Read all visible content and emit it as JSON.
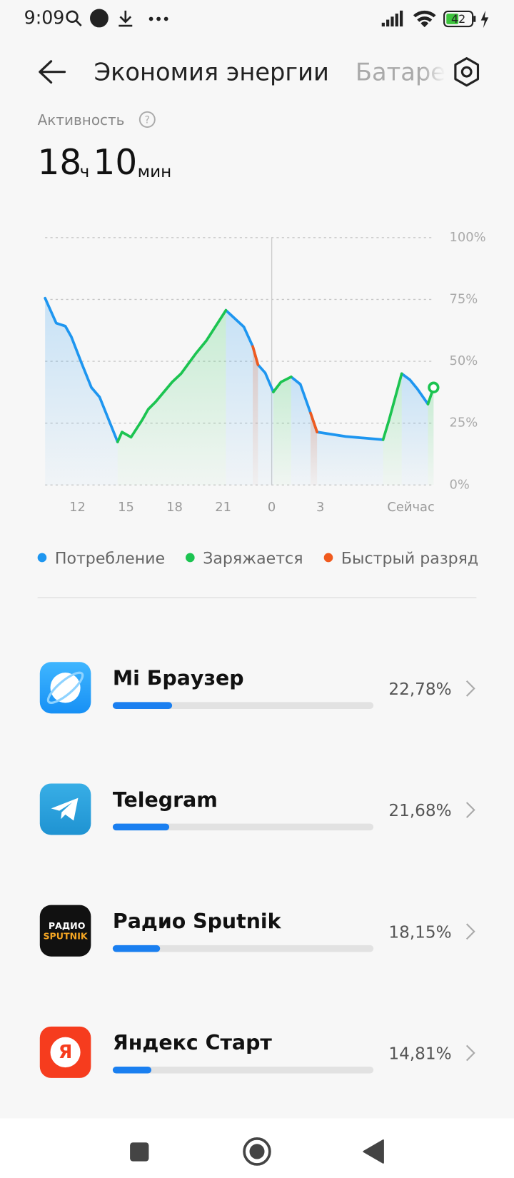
{
  "status_bar": {
    "time": "9:09",
    "battery": "42"
  },
  "header": {
    "title": "Экономия энергии",
    "tab": "Батаре"
  },
  "activity": {
    "label": "Активность",
    "hours": "18",
    "hours_unit": "ч",
    "minutes": "10",
    "minutes_unit": "мин"
  },
  "chart_data": {
    "type": "line",
    "x": [
      10,
      10.69,
      11.25,
      11.62,
      12.22,
      12.86,
      13.37,
      14.48,
      14.75,
      15.31,
      16.0,
      16.37,
      16.83,
      17.85,
      18.4,
      19.32,
      19.97,
      21.17,
      22.28,
      22.83,
      23.15,
      23.6,
      24.1,
      24.57,
      25.2,
      25.77,
      26.4,
      26.8,
      28.57,
      30.88,
      31.25,
      32.03,
      32.54,
      33.0,
      33.65,
      34.0
    ],
    "series": [
      {
        "name": "Потребление",
        "color": "#1e96f0",
        "values": [
          75.5,
          65.4,
          64.2,
          59.9,
          49.8,
          39.4,
          35.5,
          17.4,
          null,
          null,
          null,
          null,
          null,
          null,
          null,
          null,
          null,
          70.6,
          63.9,
          56.0,
          48.6,
          45.3,
          37.6,
          null,
          43.7,
          40.7,
          29.1,
          21.4,
          19.6,
          18.3,
          null,
          45.0,
          42.5,
          38.8,
          32.7,
          null
        ]
      },
      {
        "name": "Заряжается",
        "color": "#1cc451",
        "values": [
          null,
          null,
          null,
          null,
          null,
          null,
          null,
          17.4,
          21.4,
          19.3,
          26.3,
          30.6,
          33.6,
          41.6,
          45.0,
          53.2,
          58.4,
          70.6,
          null,
          null,
          null,
          null,
          37.6,
          41.6,
          43.7,
          null,
          null,
          null,
          null,
          18.3,
          26.3,
          45.0,
          null,
          null,
          32.7,
          39.4
        ]
      },
      {
        "name": "Быстрый разряд",
        "color": "#f05a1e",
        "values": [
          null,
          null,
          null,
          null,
          null,
          null,
          null,
          null,
          null,
          null,
          null,
          null,
          null,
          null,
          null,
          null,
          null,
          null,
          null,
          56.0,
          48.6,
          null,
          null,
          null,
          null,
          null,
          29.1,
          21.4,
          null,
          null,
          null,
          null,
          null,
          null,
          null,
          null
        ]
      }
    ],
    "xlim": [
      10,
      34
    ],
    "xticks": [
      12,
      15,
      18,
      21,
      {
        "value": 24,
        "label": "0"
      },
      {
        "value": 27,
        "label": "3"
      },
      {
        "value": 32.6,
        "label": "Сейчас"
      }
    ],
    "ylim": [
      0,
      100
    ],
    "yticks": [
      {
        "value": 0,
        "label": "0%"
      },
      {
        "value": 25,
        "label": "25%"
      },
      {
        "value": 50,
        "label": "50%"
      },
      {
        "value": 75,
        "label": "75%"
      },
      {
        "value": 100,
        "label": "100%"
      }
    ],
    "ref_line_x": 24,
    "grid": true
  },
  "apps": [
    {
      "name": "Mi Браузер",
      "value": 22.78,
      "value_label": "22,78%"
    },
    {
      "name": "Telegram",
      "value": 21.68,
      "value_label": "21,68%"
    },
    {
      "name": "Радио Sputnik",
      "value": 18.15,
      "value_label": "18,15%",
      "icon_text": [
        "РАДИО",
        "SPUTNIK"
      ]
    },
    {
      "name": "Яндекс Старт",
      "value": 14.81,
      "value_label": "14,81%",
      "icon_text": [
        "Я"
      ]
    }
  ]
}
